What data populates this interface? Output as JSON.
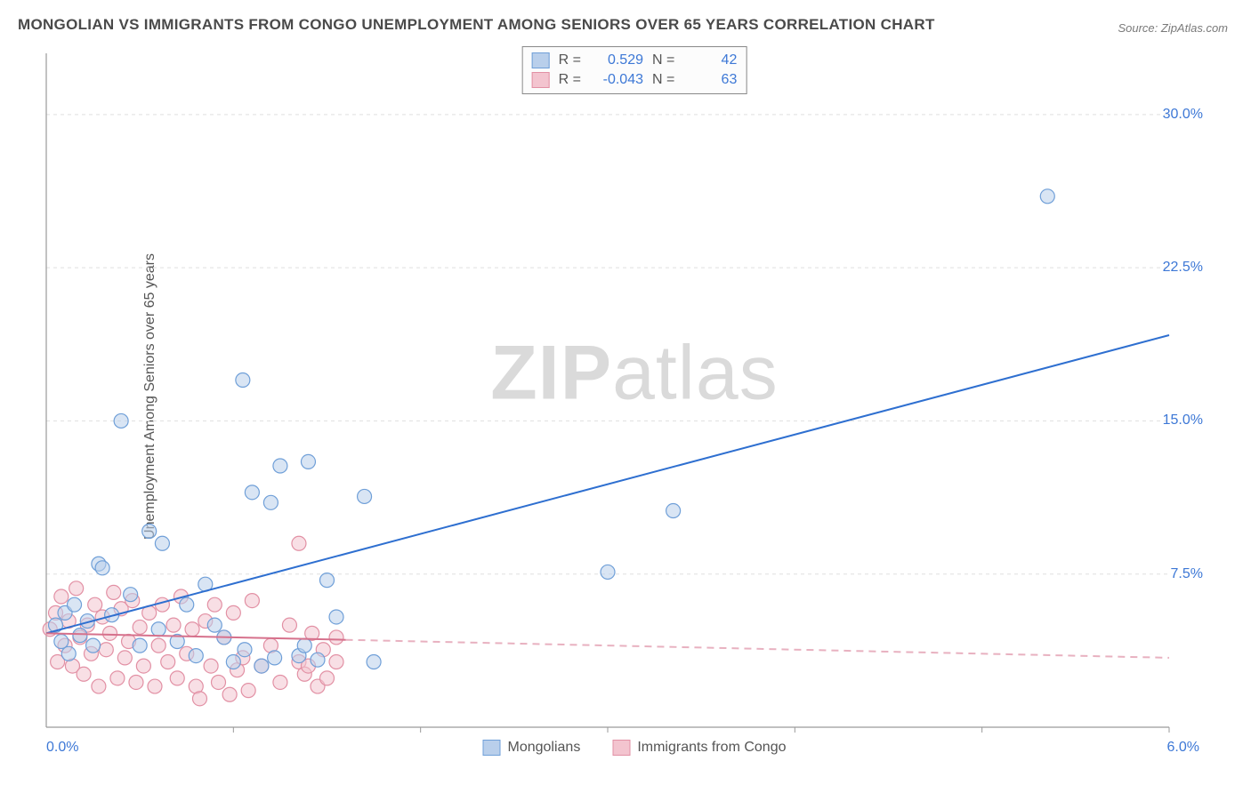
{
  "title": "MONGOLIAN VS IMMIGRANTS FROM CONGO UNEMPLOYMENT AMONG SENIORS OVER 65 YEARS CORRELATION CHART",
  "source": "Source: ZipAtlas.com",
  "yaxis_label": "Unemployment Among Seniors over 65 years",
  "watermark_a": "ZIP",
  "watermark_b": "atlas",
  "chart": {
    "type": "scatter",
    "xlim": [
      0.0,
      6.0
    ],
    "ylim": [
      0.0,
      33.0
    ],
    "x_tick_labels": {
      "min": "0.0%",
      "max": "6.0%"
    },
    "y_ticks": [
      7.5,
      15.0,
      22.5,
      30.0
    ],
    "y_tick_labels": [
      "7.5%",
      "15.0%",
      "22.5%",
      "30.0%"
    ],
    "x_minor_ticks": [
      1.0,
      2.0,
      3.0,
      4.0,
      5.0
    ],
    "background_color": "#ffffff",
    "grid_color": "#e0e0e0",
    "axis_color": "#9a9a9a",
    "marker_radius": 8,
    "marker_opacity": 0.55,
    "series": [
      {
        "name": "Mongolians",
        "color_fill": "#b9cfeb",
        "color_stroke": "#6f9fd8",
        "R": "0.529",
        "N": "42",
        "trend": {
          "x1": 0.0,
          "y1": 4.6,
          "x2": 6.0,
          "y2": 19.2,
          "solid_until_x": 6.0,
          "stroke": "#2e6fd0",
          "width": 2
        },
        "points": [
          [
            0.05,
            5.0
          ],
          [
            0.08,
            4.2
          ],
          [
            0.1,
            5.6
          ],
          [
            0.12,
            3.6
          ],
          [
            0.15,
            6.0
          ],
          [
            0.18,
            4.5
          ],
          [
            0.22,
            5.2
          ],
          [
            0.25,
            4.0
          ],
          [
            0.28,
            8.0
          ],
          [
            0.3,
            7.8
          ],
          [
            0.35,
            5.5
          ],
          [
            0.4,
            15.0
          ],
          [
            0.45,
            6.5
          ],
          [
            0.5,
            4.0
          ],
          [
            0.55,
            9.6
          ],
          [
            0.6,
            4.8
          ],
          [
            0.62,
            9.0
          ],
          [
            0.7,
            4.2
          ],
          [
            0.75,
            6.0
          ],
          [
            0.8,
            3.5
          ],
          [
            0.85,
            7.0
          ],
          [
            0.9,
            5.0
          ],
          [
            0.95,
            4.4
          ],
          [
            1.0,
            3.2
          ],
          [
            1.05,
            17.0
          ],
          [
            1.06,
            3.8
          ],
          [
            1.1,
            11.5
          ],
          [
            1.15,
            3.0
          ],
          [
            1.2,
            11.0
          ],
          [
            1.22,
            3.4
          ],
          [
            1.25,
            12.8
          ],
          [
            1.35,
            3.5
          ],
          [
            1.38,
            4.0
          ],
          [
            1.4,
            13.0
          ],
          [
            1.45,
            3.3
          ],
          [
            1.5,
            7.2
          ],
          [
            1.55,
            5.4
          ],
          [
            1.7,
            11.3
          ],
          [
            1.75,
            3.2
          ],
          [
            3.0,
            7.6
          ],
          [
            3.35,
            10.6
          ],
          [
            5.35,
            26.0
          ]
        ]
      },
      {
        "name": "Immigrants from Congo",
        "color_fill": "#f3c4cf",
        "color_stroke": "#e290a4",
        "R": "-0.043",
        "N": "63",
        "trend": {
          "x1": 0.0,
          "y1": 4.6,
          "x2": 6.0,
          "y2": 3.4,
          "solid_until_x": 1.6,
          "stroke": "#d6718c",
          "width": 2
        },
        "points": [
          [
            0.02,
            4.8
          ],
          [
            0.05,
            5.6
          ],
          [
            0.06,
            3.2
          ],
          [
            0.08,
            6.4
          ],
          [
            0.1,
            4.0
          ],
          [
            0.12,
            5.2
          ],
          [
            0.14,
            3.0
          ],
          [
            0.16,
            6.8
          ],
          [
            0.18,
            4.4
          ],
          [
            0.2,
            2.6
          ],
          [
            0.22,
            5.0
          ],
          [
            0.24,
            3.6
          ],
          [
            0.26,
            6.0
          ],
          [
            0.28,
            2.0
          ],
          [
            0.3,
            5.4
          ],
          [
            0.32,
            3.8
          ],
          [
            0.34,
            4.6
          ],
          [
            0.36,
            6.6
          ],
          [
            0.38,
            2.4
          ],
          [
            0.4,
            5.8
          ],
          [
            0.42,
            3.4
          ],
          [
            0.44,
            4.2
          ],
          [
            0.46,
            6.2
          ],
          [
            0.48,
            2.2
          ],
          [
            0.5,
            4.9
          ],
          [
            0.52,
            3.0
          ],
          [
            0.55,
            5.6
          ],
          [
            0.58,
            2.0
          ],
          [
            0.6,
            4.0
          ],
          [
            0.62,
            6.0
          ],
          [
            0.65,
            3.2
          ],
          [
            0.68,
            5.0
          ],
          [
            0.7,
            2.4
          ],
          [
            0.72,
            6.4
          ],
          [
            0.75,
            3.6
          ],
          [
            0.78,
            4.8
          ],
          [
            0.8,
            2.0
          ],
          [
            0.82,
            1.4
          ],
          [
            0.85,
            5.2
          ],
          [
            0.88,
            3.0
          ],
          [
            0.9,
            6.0
          ],
          [
            0.92,
            2.2
          ],
          [
            0.95,
            4.4
          ],
          [
            0.98,
            1.6
          ],
          [
            1.0,
            5.6
          ],
          [
            1.02,
            2.8
          ],
          [
            1.05,
            3.4
          ],
          [
            1.08,
            1.8
          ],
          [
            1.1,
            6.2
          ],
          [
            1.15,
            3.0
          ],
          [
            1.2,
            4.0
          ],
          [
            1.25,
            2.2
          ],
          [
            1.3,
            5.0
          ],
          [
            1.35,
            3.2
          ],
          [
            1.35,
            9.0
          ],
          [
            1.38,
            2.6
          ],
          [
            1.4,
            3.0
          ],
          [
            1.42,
            4.6
          ],
          [
            1.45,
            2.0
          ],
          [
            1.48,
            3.8
          ],
          [
            1.5,
            2.4
          ],
          [
            1.55,
            3.2
          ],
          [
            1.55,
            4.4
          ]
        ]
      }
    ]
  },
  "legend_top": [
    {
      "swatch_fill": "#b9cfeb",
      "swatch_stroke": "#6f9fd8",
      "r_label": "R =",
      "r_val": "0.529",
      "n_label": "N =",
      "n_val": "42"
    },
    {
      "swatch_fill": "#f3c4cf",
      "swatch_stroke": "#e290a4",
      "r_label": "R =",
      "r_val": "-0.043",
      "n_label": "N =",
      "n_val": "63"
    }
  ],
  "legend_bottom": [
    {
      "swatch_fill": "#b9cfeb",
      "swatch_stroke": "#6f9fd8",
      "label": "Mongolians"
    },
    {
      "swatch_fill": "#f3c4cf",
      "swatch_stroke": "#e290a4",
      "label": "Immigrants from Congo"
    }
  ]
}
